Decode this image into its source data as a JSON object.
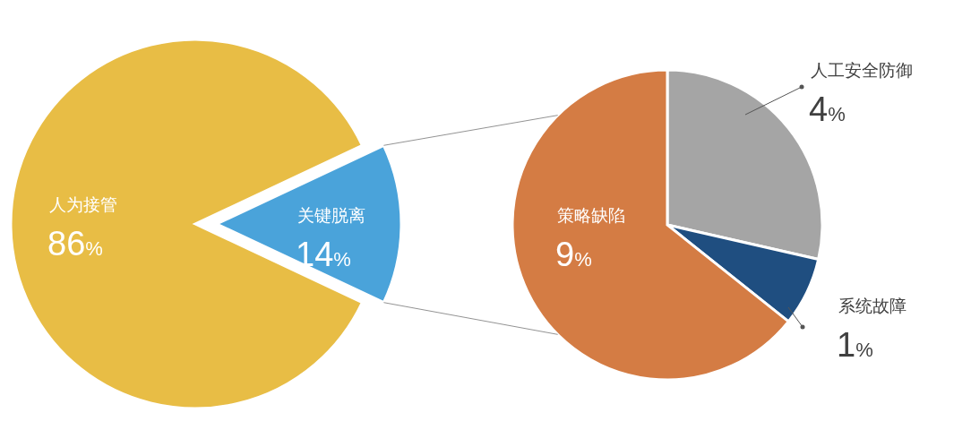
{
  "chart_data": [
    {
      "type": "pie",
      "categories": [
        "人为接管",
        "关键脱离"
      ],
      "values": [
        86,
        14
      ],
      "colors": [
        "#e8bd45",
        "#4aa3da"
      ],
      "value_labels": [
        "86%",
        "14%"
      ]
    },
    {
      "type": "pie",
      "categories": [
        "人工安全防御",
        "系统故障",
        "策略缺陷"
      ],
      "values": [
        4,
        1,
        9
      ],
      "colors": [
        "#a5a5a5",
        "#1f4e80",
        "#d47c44"
      ],
      "value_labels": [
        "4%",
        "1%",
        "9%"
      ]
    }
  ]
}
